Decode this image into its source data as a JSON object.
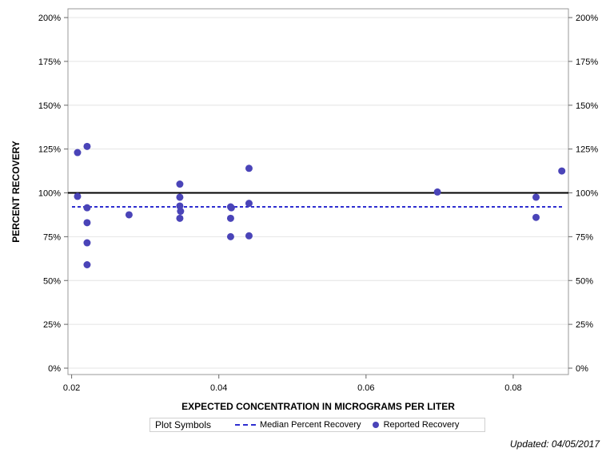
{
  "chart_data": {
    "type": "scatter",
    "xlabel": "EXPECTED CONCENTRATION IN MICROGRAMS PER LITER",
    "ylabel": "PERCENT RECOVERY",
    "xlim": [
      0.0195,
      0.0875
    ],
    "ylim": [
      0,
      200
    ],
    "x_ticks": [
      0.02,
      0.04,
      0.06,
      0.08
    ],
    "x_tick_labels": [
      "0.02",
      "0.04",
      "0.06",
      "0.08"
    ],
    "y_ticks": [
      0,
      25,
      50,
      75,
      100,
      125,
      150,
      175,
      200
    ],
    "y_tick_labels": [
      "0%",
      "25%",
      "50%",
      "75%",
      "100%",
      "125%",
      "150%",
      "175%",
      "200%"
    ],
    "reference_line": 100,
    "median_percent_recovery": 92,
    "grid": "horizontal",
    "legend_position": "bottom",
    "series": [
      {
        "name": "Reported Recovery",
        "points": [
          {
            "x": 0.0208,
            "y": 123
          },
          {
            "x": 0.0208,
            "y": 98
          },
          {
            "x": 0.0221,
            "y": 126.5
          },
          {
            "x": 0.0221,
            "y": 91.5
          },
          {
            "x": 0.0221,
            "y": 83
          },
          {
            "x": 0.0221,
            "y": 71.5
          },
          {
            "x": 0.0221,
            "y": 59
          },
          {
            "x": 0.0278,
            "y": 87.5
          },
          {
            "x": 0.0347,
            "y": 105
          },
          {
            "x": 0.0347,
            "y": 97.5
          },
          {
            "x": 0.0347,
            "y": 92.5
          },
          {
            "x": 0.0348,
            "y": 89.5
          },
          {
            "x": 0.0347,
            "y": 85.5
          },
          {
            "x": 0.0416,
            "y": 92
          },
          {
            "x": 0.0417,
            "y": 91.5
          },
          {
            "x": 0.0416,
            "y": 85.5
          },
          {
            "x": 0.0416,
            "y": 75
          },
          {
            "x": 0.0441,
            "y": 114
          },
          {
            "x": 0.0441,
            "y": 94
          },
          {
            "x": 0.0441,
            "y": 75.5
          },
          {
            "x": 0.0697,
            "y": 100.5
          },
          {
            "x": 0.0831,
            "y": 97.5
          },
          {
            "x": 0.0831,
            "y": 86
          },
          {
            "x": 0.0866,
            "y": 112.5
          }
        ]
      }
    ],
    "colors": {
      "points": "#4a44b8",
      "median_line": "#2e2ed0",
      "reference_line": "#000000",
      "grid": "#e4e4e4"
    }
  },
  "legend": {
    "title": "Plot Symbols",
    "median_label": "Median Percent Recovery",
    "reported_label": "Reported Recovery"
  },
  "footnote": "Updated: 04/05/2017"
}
